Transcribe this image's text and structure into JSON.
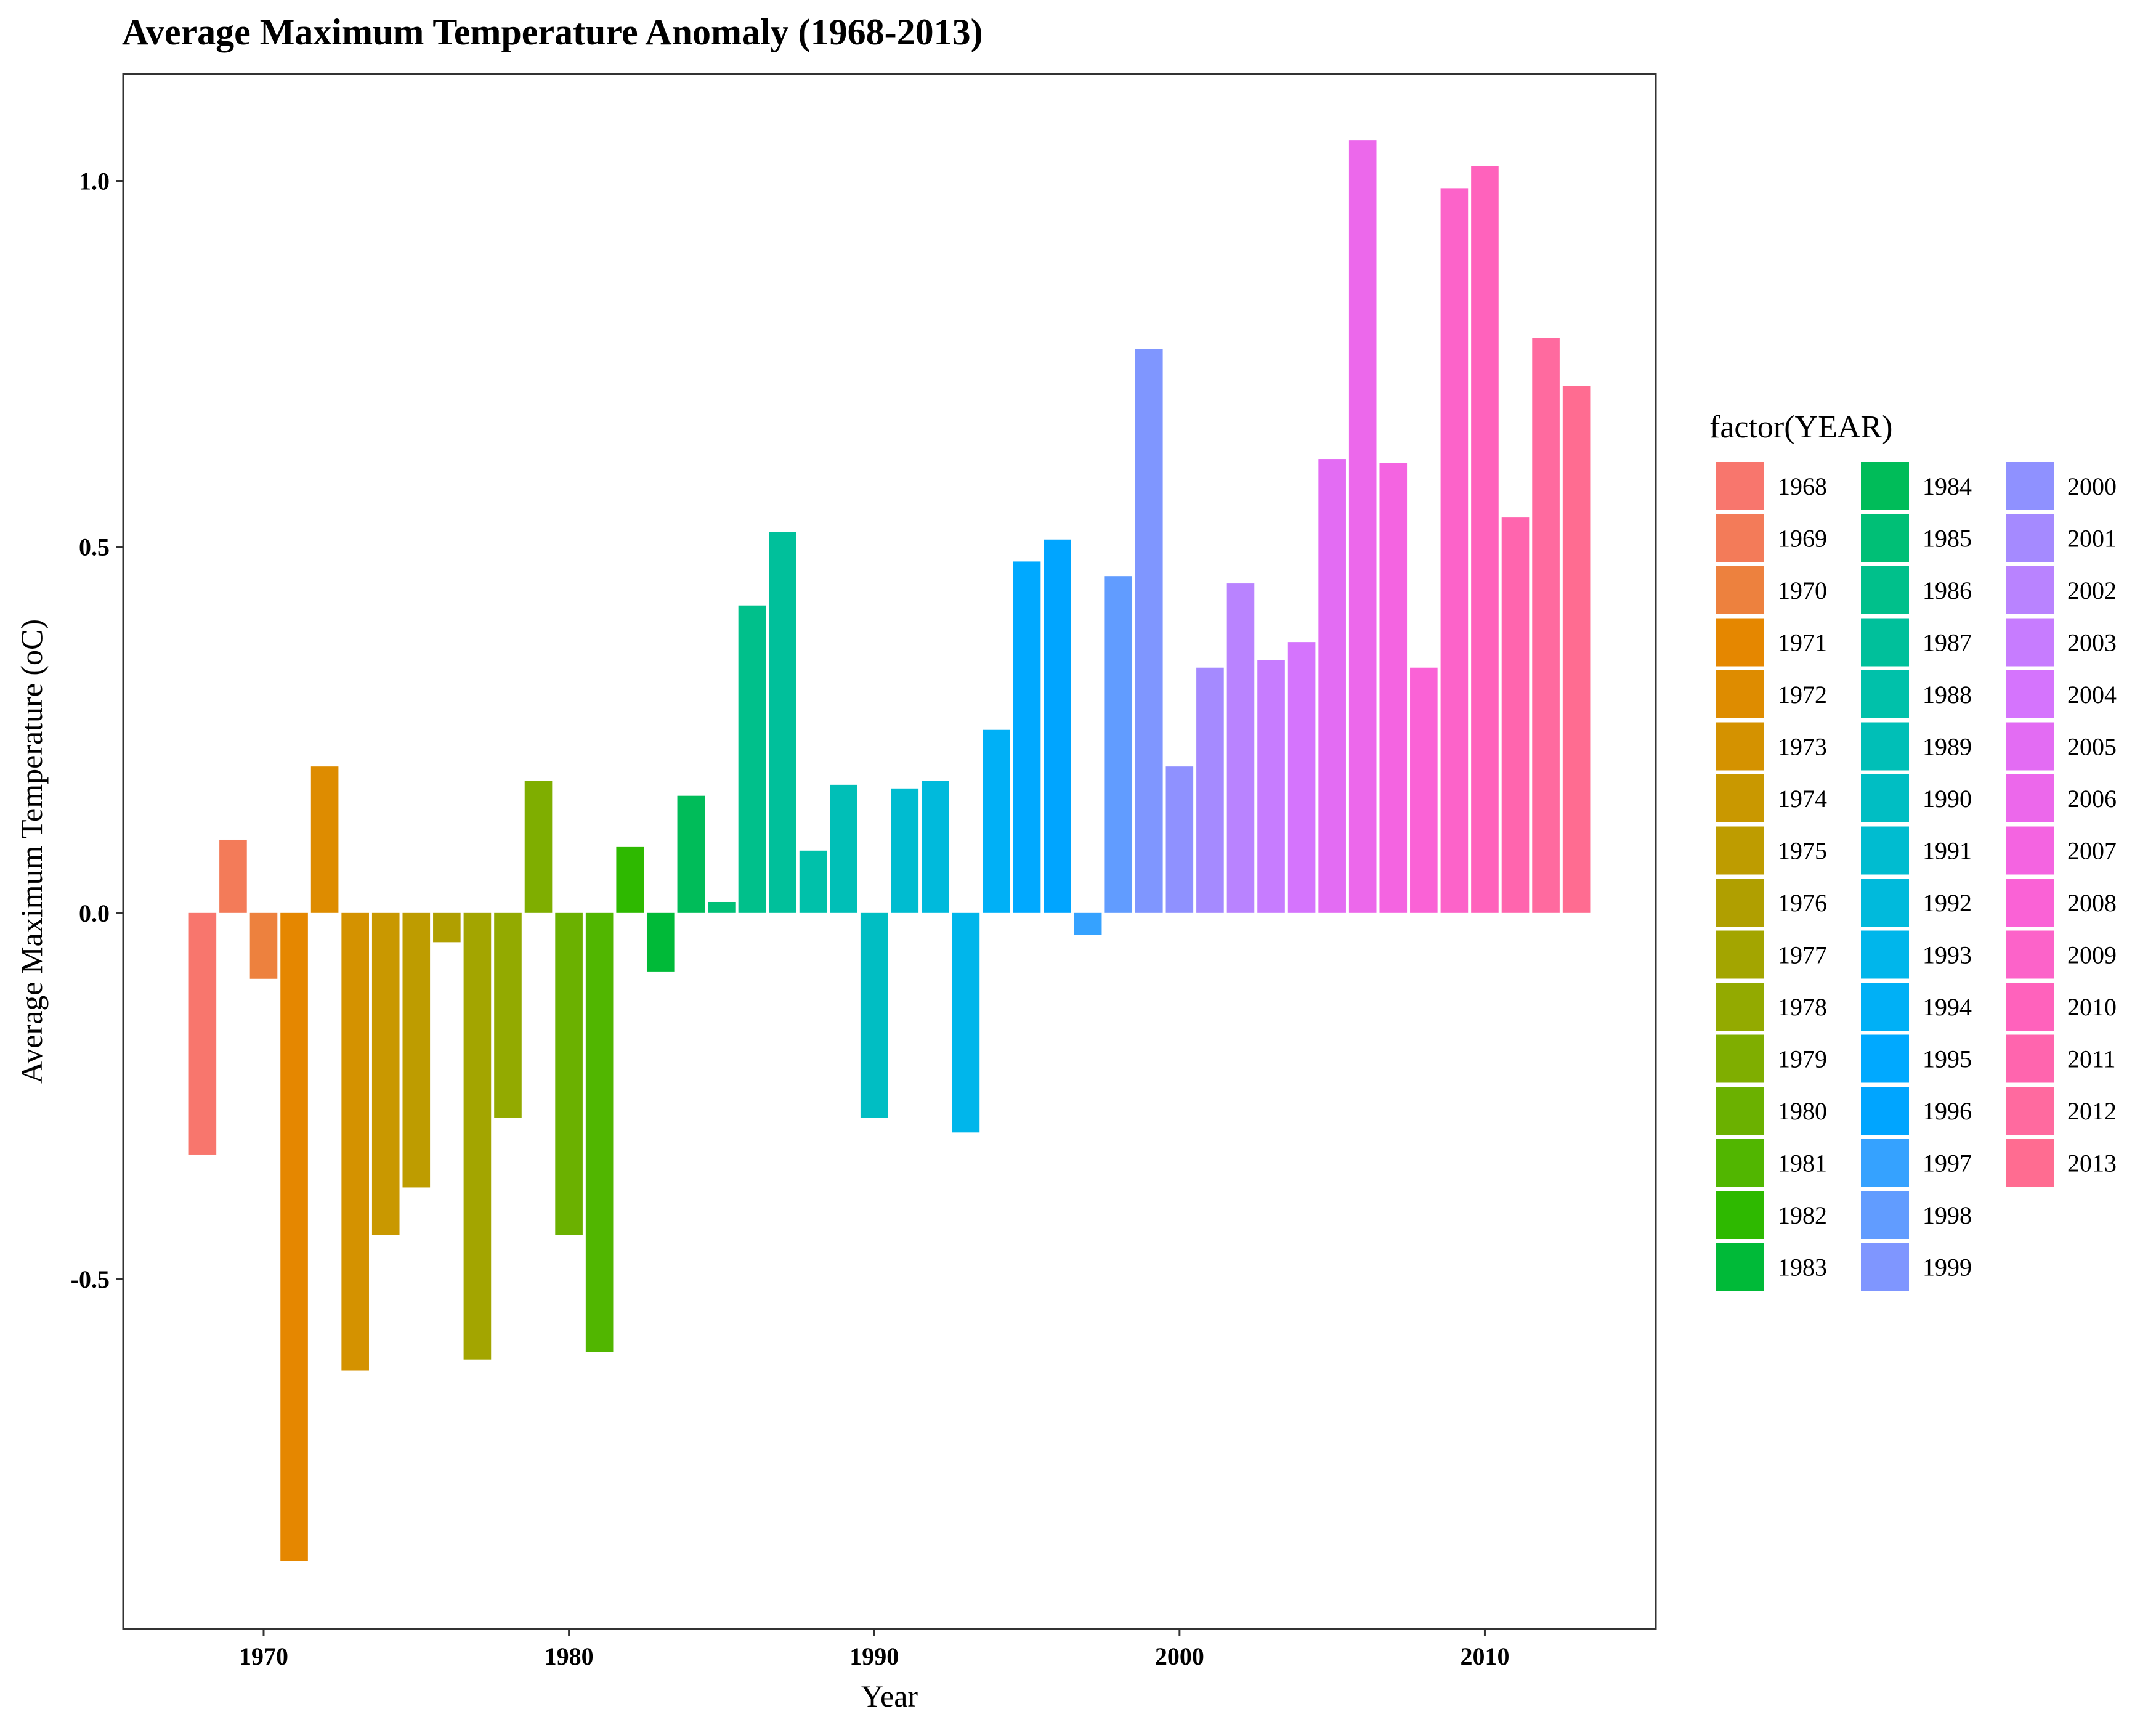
{
  "chart_data": {
    "type": "bar",
    "title": "Average Maximum Temperature Anomaly (1968-2013)",
    "xlabel": "Year",
    "ylabel": "Average Maximum Temperature (oC)",
    "xlim": [
      1965.4,
      2015.6
    ],
    "ylim": [
      -0.978,
      1.146
    ],
    "x_ticks": [
      1970,
      1980,
      1990,
      2000,
      2010
    ],
    "x_tick_labels": [
      "1970",
      "1980",
      "1990",
      "2000",
      "2010"
    ],
    "y_ticks": [
      -0.5,
      0.0,
      0.5,
      1.0
    ],
    "y_tick_labels": [
      "-0.5",
      "0.0",
      "0.5",
      "1.0"
    ],
    "grid": false,
    "legend": {
      "title": "factor(YEAR)",
      "placement": "right",
      "columns": 3,
      "rows": 16
    },
    "categories": [
      "1968",
      "1969",
      "1970",
      "1971",
      "1972",
      "1973",
      "1974",
      "1975",
      "1976",
      "1977",
      "1978",
      "1979",
      "1980",
      "1981",
      "1982",
      "1983",
      "1984",
      "1985",
      "1986",
      "1987",
      "1988",
      "1989",
      "1990",
      "1991",
      "1992",
      "1993",
      "1994",
      "1995",
      "1996",
      "1997",
      "1998",
      "1999",
      "2000",
      "2001",
      "2002",
      "2003",
      "2004",
      "2005",
      "2006",
      "2007",
      "2008",
      "2009",
      "2010",
      "2011",
      "2012",
      "2013"
    ],
    "x": [
      1968,
      1969,
      1970,
      1971,
      1972,
      1973,
      1974,
      1975,
      1976,
      1977,
      1978,
      1979,
      1980,
      1981,
      1982,
      1983,
      1984,
      1985,
      1986,
      1987,
      1988,
      1989,
      1990,
      1991,
      1992,
      1993,
      1994,
      1995,
      1996,
      1997,
      1998,
      1999,
      2000,
      2001,
      2002,
      2003,
      2004,
      2005,
      2006,
      2007,
      2008,
      2009,
      2010,
      2011,
      2012,
      2013
    ],
    "values": [
      -0.33,
      0.1,
      -0.09,
      -0.885,
      0.2,
      -0.625,
      -0.44,
      -0.375,
      -0.04,
      -0.61,
      -0.28,
      0.18,
      -0.44,
      -0.6,
      0.09,
      -0.08,
      0.16,
      0.015,
      0.42,
      0.52,
      0.085,
      0.175,
      -0.28,
      0.17,
      0.18,
      -0.3,
      0.25,
      0.48,
      0.51,
      -0.03,
      0.46,
      0.77,
      0.2,
      0.335,
      0.45,
      0.345,
      0.37,
      0.62,
      1.055,
      0.615,
      0.335,
      0.99,
      1.02,
      0.54,
      0.785,
      0.72
    ],
    "colors": [
      "#F8766D",
      "#F37B59",
      "#ED813E",
      "#E58700",
      "#DE8C00",
      "#D49200",
      "#C99800",
      "#BE9C00",
      "#B09F00",
      "#A3A500",
      "#93AA00",
      "#7FAE00",
      "#6BB100",
      "#51B600",
      "#2EB900",
      "#00BA38",
      "#00BC59",
      "#00BF76",
      "#00C08B",
      "#00C09B",
      "#00C1AA",
      "#00BFB7",
      "#00BEC3",
      "#00BCD0",
      "#00BADC",
      "#00B6EB",
      "#00B0F6",
      "#00A9FF",
      "#00A5FF",
      "#35A2FF",
      "#619CFF",
      "#7F96FF",
      "#8F91FF",
      "#A58AFF",
      "#B983FF",
      "#C77CFF",
      "#D574FD",
      "#E36CF3",
      "#EC68EB",
      "#F464E1",
      "#FA62D6",
      "#FC63C9",
      "#FF62BC",
      "#FF65AE",
      "#FF6A9F",
      "#FF6C91"
    ]
  }
}
